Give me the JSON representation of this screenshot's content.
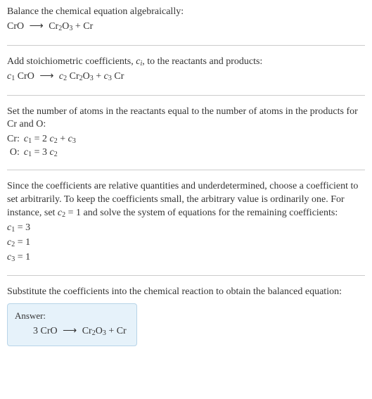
{
  "colors": {
    "text": "#333333",
    "divider": "#cccccc",
    "answer_bg": "#e6f2fa",
    "answer_border": "#b7d4e8",
    "page_bg": "#ffffff"
  },
  "fontsize_body": 14,
  "fontsize_sub": 10,
  "section1": {
    "line1": "Balance the chemical equation algebraically:",
    "eq": {
      "lhs": "CrO",
      "arrow": "⟶",
      "r1": "Cr",
      "r1sub1": "2",
      "r1o": "O",
      "r1sub2": "3",
      "plus": " + ",
      "r2": "Cr"
    }
  },
  "section2": {
    "line1a": "Add stoichiometric coefficients, ",
    "ci_c": "c",
    "ci_i": "i",
    "line1b": ", to the reactants and products:",
    "eq": {
      "c1": "c",
      "c1s": "1",
      "sp1": " CrO ",
      "arrow": "⟶",
      "sp2": " ",
      "c2": "c",
      "c2s": "2",
      "sp3": " Cr",
      "s2a": "2",
      "o": "O",
      "s2b": "3",
      "plus": " + ",
      "c3": "c",
      "c3s": "3",
      "sp4": " Cr"
    }
  },
  "section3": {
    "line1": "Set the number of atoms in the reactants equal to the number of atoms in the products for Cr and O:",
    "rows": [
      {
        "label": "Cr:",
        "lc": "c",
        "ls": "1",
        "eq": " = 2 ",
        "rc1": "c",
        "rs1": "2",
        "plus": " + ",
        "rc2": "c",
        "rs2": "3"
      },
      {
        "label": "O:",
        "lc": "c",
        "ls": "1",
        "eq": " = 3 ",
        "rc1": "c",
        "rs1": "2",
        "plus": "",
        "rc2": "",
        "rs2": ""
      }
    ]
  },
  "section4": {
    "line1a": "Since the coefficients are relative quantities and underdetermined, choose a coefficient to set arbitrarily. To keep the coefficients small, the arbitrary value is ordinarily one. For instance, set ",
    "c2c": "c",
    "c2s": "2",
    "line1b": " = 1 and solve the system of equations for the remaining coefficients:",
    "res": [
      {
        "c": "c",
        "s": "1",
        "rhs": " = 3"
      },
      {
        "c": "c",
        "s": "2",
        "rhs": " = 1"
      },
      {
        "c": "c",
        "s": "3",
        "rhs": " = 1"
      }
    ]
  },
  "section5": {
    "line1": "Substitute the coefficients into the chemical reaction to obtain the balanced equation:",
    "answer_label": "Answer:",
    "eq": {
      "lhs": "3 CrO ",
      "arrow": "⟶",
      "sp": " Cr",
      "s1": "2",
      "o": "O",
      "s2": "3",
      "plus": " + Cr"
    }
  }
}
